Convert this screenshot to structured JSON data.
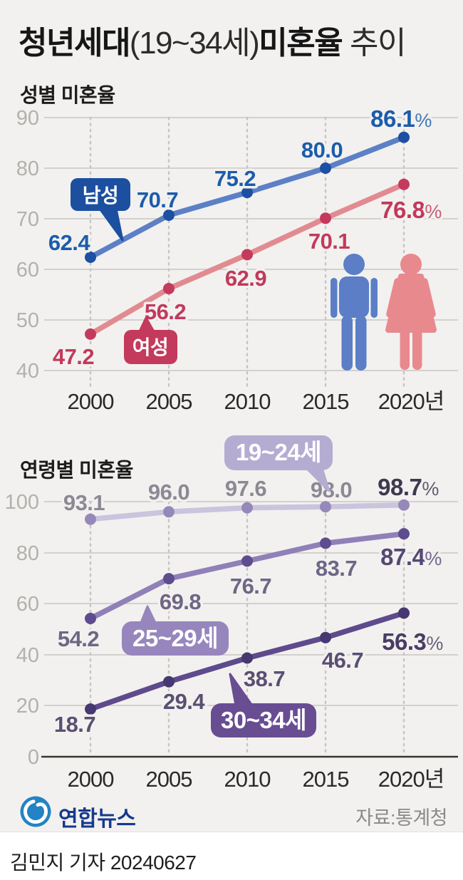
{
  "ui": {
    "percent": "%"
  },
  "header": {
    "title_bold_1": "청년세대",
    "title_light_1": "(19~34세)",
    "title_bold_2": "미혼율",
    "title_light_2": "추이"
  },
  "chart_data": [
    {
      "type": "line",
      "title": "성별 미혼율",
      "x": [
        2000,
        2005,
        2010,
        2015,
        2020
      ],
      "x_tick_labels": [
        "2000",
        "2005",
        "2010",
        "2015",
        "2020년"
      ],
      "ylim": [
        40,
        90
      ],
      "yticks": [
        90,
        80,
        70,
        60,
        50,
        40
      ],
      "grid": true,
      "legend_position": "on-line-bubbles",
      "series": [
        {
          "name": "남성",
          "color": "#5c80c5",
          "dot_color": "#1d4fa3",
          "bubble_color": "#1c4fa0",
          "label_color": "#1b5cab",
          "values": [
            62.4,
            70.7,
            75.2,
            80.0,
            86.1
          ],
          "labels": [
            "62.4",
            "70.7",
            "75.2",
            "80.0",
            "86.1"
          ],
          "final_label": "86.1%"
        },
        {
          "name": "여성",
          "color": "#e18b91",
          "dot_color": "#c43a5c",
          "bubble_color": "#c43a5c",
          "label_color": "#c2395b",
          "values": [
            47.2,
            56.2,
            62.9,
            70.1,
            76.8
          ],
          "labels": [
            "47.2",
            "56.2",
            "62.9",
            "70.1",
            "76.8"
          ],
          "final_label": "76.8%"
        }
      ],
      "pictograms": [
        {
          "name": "man",
          "color": "#5b7ec6"
        },
        {
          "name": "woman",
          "color": "#e8898e"
        }
      ]
    },
    {
      "type": "line",
      "title": "연령별 미혼율",
      "x": [
        2000,
        2005,
        2010,
        2015,
        2020
      ],
      "x_tick_labels": [
        "2000",
        "2005",
        "2010",
        "2015",
        "2020년"
      ],
      "ylim": [
        0,
        100
      ],
      "yticks": [
        100,
        80,
        60,
        40,
        20,
        0
      ],
      "grid": true,
      "legend_position": "on-line-bubbles",
      "series": [
        {
          "name": "19~24세",
          "color": "#cbc4de",
          "dot_color": "#9589ba",
          "bubble_color": "#b5acd2",
          "label_color": "#8d8894",
          "values": [
            93.1,
            96.0,
            97.6,
            98.0,
            98.7
          ],
          "labels": [
            "93.1",
            "96.0",
            "97.6",
            "98.0",
            "98.7"
          ],
          "final_label": "98.7%"
        },
        {
          "name": "25~29세",
          "color": "#9080b8",
          "dot_color": "#5e4c8f",
          "bubble_color": "#9786bd",
          "label_color": "#6f6685",
          "values": [
            54.2,
            69.8,
            76.7,
            83.7,
            87.4
          ],
          "labels": [
            "54.2",
            "69.8",
            "76.7",
            "83.7",
            "87.4"
          ],
          "final_label": "87.4%"
        },
        {
          "name": "30~34세",
          "color": "#5e4a8c",
          "dot_color": "#463870",
          "bubble_color": "#684d93",
          "label_color": "#5a4f72",
          "values": [
            18.7,
            29.4,
            38.7,
            46.7,
            56.3
          ],
          "labels": [
            "18.7",
            "29.4",
            "38.7",
            "46.7",
            "56.3"
          ],
          "final_label": "56.3%"
        }
      ]
    }
  ],
  "footer": {
    "logo_text": "연합뉴스",
    "source": "자료:통계청",
    "credit": "김민지 기자  20240627"
  }
}
